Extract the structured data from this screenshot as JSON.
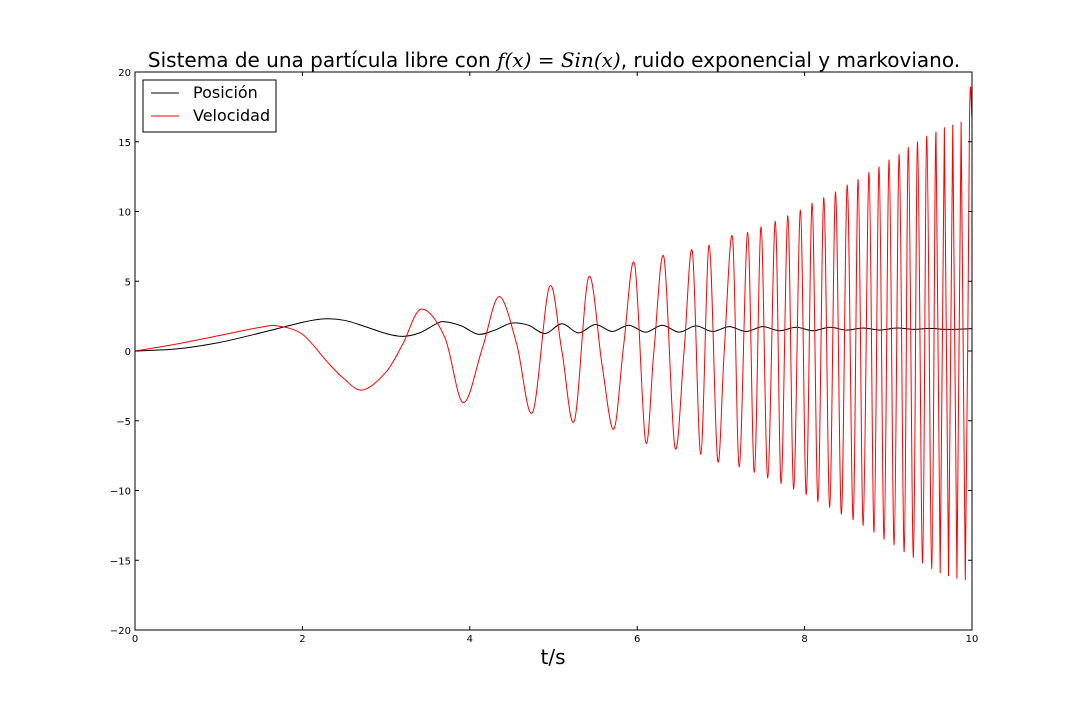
{
  "chart_data": {
    "type": "line",
    "title_parts": {
      "prefix": "Sistema de una partícula libre con ",
      "math": "f(x) = Sin(x)",
      "suffix": ", ruido exponencial y markoviano."
    },
    "xlabel": "t/s",
    "ylabel": "",
    "xlim": [
      0,
      10
    ],
    "ylim": [
      -20,
      20
    ],
    "x_ticks": [
      0,
      2,
      4,
      6,
      8,
      10
    ],
    "x_tick_labels": [
      "0",
      "2",
      "4",
      "6",
      "8",
      "10"
    ],
    "y_ticks": [
      -20,
      -15,
      -10,
      -5,
      0,
      5,
      10,
      15,
      20
    ],
    "y_tick_labels": [
      "−20",
      "−15",
      "−10",
      "−5",
      "0",
      "5",
      "10",
      "15",
      "20"
    ],
    "grid": false,
    "legend_position": "top-left",
    "series": [
      {
        "name": "Posición",
        "color": "#000000",
        "x": [
          0,
          0.5,
          1.0,
          1.5,
          2.0,
          2.25,
          2.5,
          2.75,
          3.0,
          3.2,
          3.4,
          3.6,
          3.7,
          3.9,
          4.1,
          4.3,
          4.5,
          4.7,
          4.9,
          5.1,
          5.3,
          5.5,
          5.7,
          5.9,
          6.1,
          6.3,
          6.5,
          6.7,
          6.9,
          7.1,
          7.3,
          7.5,
          7.7,
          7.9,
          8.1,
          8.3,
          8.5,
          8.7,
          8.9,
          9.1,
          9.3,
          9.5,
          9.7,
          10.0
        ],
        "y": [
          0,
          0.15,
          0.6,
          1.3,
          2.05,
          2.3,
          2.2,
          1.75,
          1.25,
          1.05,
          1.3,
          1.95,
          2.1,
          1.8,
          1.2,
          1.5,
          2.0,
          1.85,
          1.25,
          1.95,
          1.3,
          1.9,
          1.4,
          1.85,
          1.35,
          1.85,
          1.35,
          1.8,
          1.4,
          1.75,
          1.4,
          1.75,
          1.45,
          1.7,
          1.45,
          1.7,
          1.5,
          1.65,
          1.5,
          1.65,
          1.55,
          1.62,
          1.55,
          1.6
        ]
      },
      {
        "name": "Velocidad",
        "color": "#ff0000",
        "x": [
          0,
          0.5,
          1.0,
          1.5,
          1.7,
          2.0,
          2.3,
          2.5,
          2.72,
          3.0,
          3.2,
          3.42,
          3.7,
          3.92,
          4.15,
          4.35,
          4.56,
          4.75,
          4.95,
          5.1,
          5.25,
          5.42,
          5.58,
          5.72,
          5.84,
          5.97,
          6.1,
          6.2,
          6.32,
          6.45,
          6.56,
          6.66,
          6.76,
          6.86,
          6.96,
          7.04,
          7.14,
          7.22,
          7.32,
          7.4,
          7.48,
          7.56,
          7.65,
          7.72,
          7.8,
          7.87,
          7.95,
          8.02,
          8.09,
          8.16,
          8.23,
          8.3,
          8.37,
          8.44,
          8.51,
          8.58,
          8.64,
          8.7,
          8.77,
          8.83,
          8.89,
          8.95,
          9.01,
          9.07,
          9.13,
          9.19,
          9.24,
          9.3,
          9.35,
          9.41,
          9.46,
          9.52,
          9.57,
          9.62,
          9.67,
          9.72,
          9.77,
          9.82,
          9.87,
          9.92,
          9.97,
          10.0
        ],
        "y": [
          0,
          0.5,
          1.1,
          1.7,
          1.8,
          1.2,
          -0.8,
          -2.0,
          -2.8,
          -1.5,
          0.5,
          3.0,
          1.0,
          -3.7,
          0.2,
          3.9,
          0.5,
          -4.4,
          4.6,
          0.0,
          -5.0,
          5.3,
          -1.0,
          -5.6,
          0.5,
          6.2,
          -6.5,
          0.0,
          6.7,
          -6.9,
          0.0,
          7.1,
          -7.4,
          7.6,
          -7.8,
          0.0,
          8.1,
          -8.3,
          8.5,
          -8.7,
          8.9,
          -9.1,
          9.3,
          -9.5,
          9.7,
          -9.9,
          10.1,
          -10.3,
          10.6,
          -10.8,
          11.0,
          -11.2,
          11.4,
          -11.7,
          11.9,
          -12.1,
          12.3,
          -12.5,
          12.8,
          -13.0,
          13.2,
          -13.5,
          13.7,
          -13.9,
          14.1,
          -14.4,
          14.6,
          -14.8,
          15.0,
          -15.2,
          15.4,
          -15.6,
          15.7,
          -15.9,
          16.0,
          -16.1,
          16.2,
          -16.3,
          16.4,
          -16.4,
          16.5,
          16.5
        ]
      }
    ]
  }
}
